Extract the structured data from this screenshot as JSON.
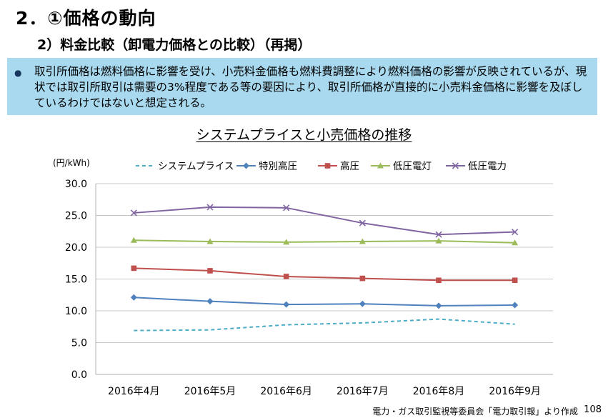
{
  "slide": {
    "heading": "2．①価格の動向",
    "subheading": "2）料金比較（卸電力価格との比較）（再掲）",
    "bullet": "取引所価格は燃料価格に影響を受け、小売料金価格も燃料費調整により燃料価格の影響が反映されているが、現状では取引所取引は需要の3%程度である等の要因により、取引所価格が直接的に小売料金価格に影響を及ぼしているわけではないと想定される。",
    "source": "電力・ガス取引監視等委員会「電力取引報」より作成",
    "page_number": "108"
  },
  "chart_data": {
    "type": "line",
    "title": "システムプライスと小売価格の推移",
    "unit_label": "(円/kWh)",
    "categories": [
      "2016年4月",
      "2016年5月",
      "2016年6月",
      "2016年7月",
      "2016年8月",
      "2016年9月"
    ],
    "ylim": [
      0,
      30
    ],
    "yticks": [
      "0.0",
      "5.0",
      "10.0",
      "15.0",
      "20.0",
      "25.0",
      "30.0"
    ],
    "grid": true,
    "legend_position": "top",
    "series": [
      {
        "name": "システムプライス",
        "values": [
          6.9,
          7.0,
          7.8,
          8.1,
          8.7,
          7.9
        ],
        "color": "#4bacc6",
        "style": "dashed",
        "marker": "none"
      },
      {
        "name": "特別高圧",
        "values": [
          12.1,
          11.5,
          11.0,
          11.1,
          10.8,
          10.9
        ],
        "color": "#4f81bd",
        "style": "solid",
        "marker": "diamond"
      },
      {
        "name": "高圧",
        "values": [
          16.7,
          16.3,
          15.4,
          15.1,
          14.8,
          14.8
        ],
        "color": "#c0504d",
        "style": "solid",
        "marker": "square"
      },
      {
        "name": "低圧電灯",
        "values": [
          21.1,
          20.9,
          20.8,
          20.9,
          21.0,
          20.7
        ],
        "color": "#9bbb59",
        "style": "solid",
        "marker": "triangle"
      },
      {
        "name": "低圧電力",
        "values": [
          25.4,
          26.3,
          26.2,
          23.8,
          22.0,
          22.4
        ],
        "color": "#8064a2",
        "style": "solid",
        "marker": "x"
      }
    ]
  }
}
